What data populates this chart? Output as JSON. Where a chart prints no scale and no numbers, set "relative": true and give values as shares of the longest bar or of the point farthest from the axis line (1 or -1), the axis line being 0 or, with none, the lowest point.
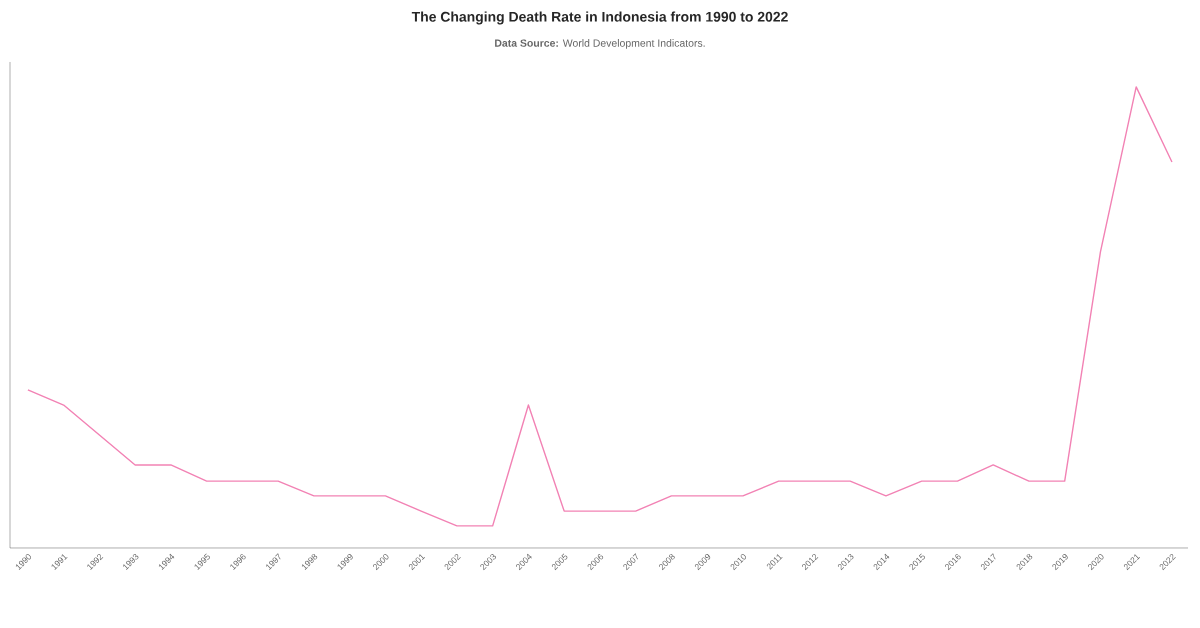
{
  "chart_data": {
    "type": "line",
    "title": "The Changing Death Rate in Indonesia from 1990 to 2022",
    "subtitle": "**Data Source:** World Development Indicators.",
    "relative": true,
    "categories": [
      "1990",
      "1991",
      "1992",
      "1993",
      "1994",
      "1995",
      "1996",
      "1997",
      "1998",
      "1999",
      "2000",
      "2001",
      "2002",
      "2003",
      "2004",
      "2005",
      "2006",
      "2007",
      "2008",
      "2009",
      "2010",
      "2011",
      "2012",
      "2013",
      "2014",
      "2015",
      "2016",
      "2017",
      "2018",
      "2019",
      "2020",
      "2021",
      "2022"
    ],
    "color": "#f282b4",
    "values": [
      0.343,
      0.31,
      0.245,
      0.18,
      0.18,
      0.145,
      0.145,
      0.145,
      0.113,
      0.113,
      0.113,
      0.08,
      0.048,
      0.048,
      0.31,
      0.08,
      0.08,
      0.08,
      0.113,
      0.113,
      0.113,
      0.145,
      0.145,
      0.145,
      0.113,
      0.145,
      0.145,
      0.18,
      0.145,
      0.145,
      0.642,
      1,
      0.837
    ]
  }
}
